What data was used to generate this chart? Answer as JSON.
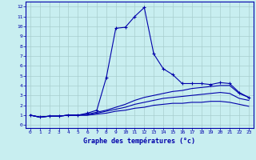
{
  "title": "Graphe des températures (°c)",
  "bg_color": "#c8eef0",
  "grid_color": "#a8cece",
  "line_color": "#0000aa",
  "xlim": [
    -0.5,
    23.5
  ],
  "ylim": [
    -0.3,
    12.5
  ],
  "xticks": [
    0,
    1,
    2,
    3,
    4,
    5,
    6,
    7,
    8,
    9,
    10,
    11,
    12,
    13,
    14,
    15,
    16,
    17,
    18,
    19,
    20,
    21,
    22,
    23
  ],
  "yticks": [
    0,
    1,
    2,
    3,
    4,
    5,
    6,
    7,
    8,
    9,
    10,
    11,
    12
  ],
  "series": [
    {
      "x": [
        0,
        1,
        2,
        3,
        4,
        5,
        6,
        7,
        8,
        9,
        10,
        11,
        12,
        13,
        14,
        15,
        16,
        17,
        18,
        19,
        20,
        21,
        22,
        23
      ],
      "y": [
        1.0,
        0.8,
        0.9,
        0.9,
        1.0,
        1.0,
        1.2,
        1.5,
        4.8,
        9.8,
        9.9,
        11.0,
        11.9,
        7.2,
        5.7,
        5.1,
        4.2,
        4.2,
        4.2,
        4.1,
        4.3,
        4.2,
        3.3,
        2.8
      ],
      "marker": "+"
    },
    {
      "x": [
        0,
        1,
        2,
        3,
        4,
        5,
        6,
        7,
        8,
        9,
        10,
        11,
        12,
        13,
        14,
        15,
        16,
        17,
        18,
        19,
        20,
        21,
        22,
        23
      ],
      "y": [
        1.0,
        0.8,
        0.9,
        0.9,
        1.0,
        1.0,
        1.1,
        1.3,
        1.5,
        1.8,
        2.1,
        2.5,
        2.8,
        3.0,
        3.2,
        3.4,
        3.5,
        3.7,
        3.8,
        3.9,
        4.0,
        4.0,
        3.2,
        2.8
      ],
      "marker": null
    },
    {
      "x": [
        0,
        1,
        2,
        3,
        4,
        5,
        6,
        7,
        8,
        9,
        10,
        11,
        12,
        13,
        14,
        15,
        16,
        17,
        18,
        19,
        20,
        21,
        22,
        23
      ],
      "y": [
        1.0,
        0.8,
        0.9,
        0.9,
        1.0,
        1.0,
        1.0,
        1.2,
        1.4,
        1.6,
        1.8,
        2.1,
        2.3,
        2.5,
        2.7,
        2.8,
        2.9,
        3.0,
        3.1,
        3.2,
        3.3,
        3.2,
        2.7,
        2.5
      ],
      "marker": null
    },
    {
      "x": [
        0,
        1,
        2,
        3,
        4,
        5,
        6,
        7,
        8,
        9,
        10,
        11,
        12,
        13,
        14,
        15,
        16,
        17,
        18,
        19,
        20,
        21,
        22,
        23
      ],
      "y": [
        1.0,
        0.8,
        0.9,
        0.9,
        1.0,
        1.0,
        1.0,
        1.1,
        1.2,
        1.4,
        1.5,
        1.7,
        1.8,
        2.0,
        2.1,
        2.2,
        2.2,
        2.3,
        2.3,
        2.4,
        2.4,
        2.3,
        2.1,
        1.9
      ],
      "marker": null
    }
  ]
}
